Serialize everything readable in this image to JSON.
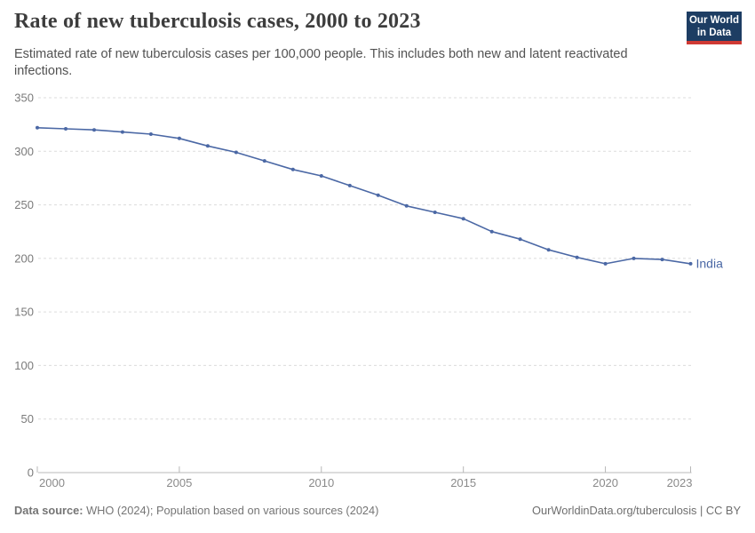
{
  "header": {
    "title": "Rate of new tuberculosis cases, 2000 to 2023",
    "subtitle": "Estimated rate of new tuberculosis cases per 100,000 people. This includes both new and latent reactivated infections.",
    "logo": {
      "line1": "Our World",
      "line2": "in Data",
      "bg_color": "#1d3d63",
      "accent_color": "#cf3a34"
    }
  },
  "chart_data": {
    "type": "line",
    "title": "Rate of new tuberculosis cases, 2000 to 2023",
    "xlabel": "",
    "ylabel": "",
    "x": [
      2000,
      2001,
      2002,
      2003,
      2004,
      2005,
      2006,
      2007,
      2008,
      2009,
      2010,
      2011,
      2012,
      2013,
      2014,
      2015,
      2016,
      2017,
      2018,
      2019,
      2020,
      2021,
      2022,
      2023
    ],
    "series": [
      {
        "name": "India",
        "color": "#4b68a5",
        "values": [
          322,
          321,
          320,
          318,
          316,
          312,
          305,
          299,
          291,
          283,
          277,
          268,
          259,
          249,
          243,
          237,
          225,
          218,
          208,
          201,
          195,
          200,
          199,
          195
        ]
      }
    ],
    "ylim": [
      0,
      350
    ],
    "yticks": [
      0,
      50,
      100,
      150,
      200,
      250,
      300,
      350
    ],
    "xticks": [
      2000,
      2005,
      2010,
      2015,
      2020,
      2023
    ],
    "grid": "horizontal-dashed",
    "legend_position": "line-end-label",
    "colors": {
      "grid": "#dcdcdc",
      "axis": "#b8b8b8",
      "tick_label": "#7a7a7a"
    }
  },
  "footer": {
    "source_label": "Data source:",
    "source_text": " WHO (2024); Population based on various sources (2024)",
    "link_text": "OurWorldinData.org/tuberculosis | CC BY"
  }
}
